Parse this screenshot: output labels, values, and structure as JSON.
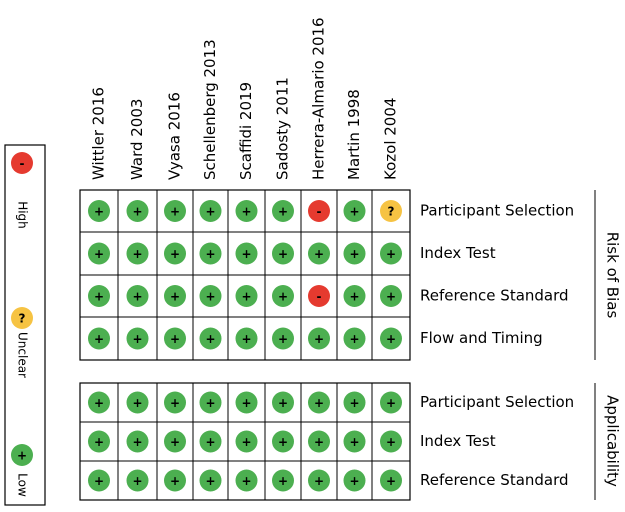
{
  "legend": [
    {
      "symbol": "-",
      "label": "High",
      "color": "#e53a2f"
    },
    {
      "symbol": "?",
      "label": "Unclear",
      "color": "#f6c343"
    },
    {
      "symbol": "+",
      "label": "Low",
      "color": "#4caf50"
    }
  ],
  "studies": [
    "Wittler 2016",
    "Ward 2003",
    "Vyasa 2016",
    "Schellenberg 2013",
    "Scaffidi 2019",
    "Sadosty 2011",
    "Herrera-Almario 2016",
    "Martin 1998",
    "Kozol 2004"
  ],
  "risk_of_bias": {
    "title": "Risk of Bias",
    "domains": [
      "Participant Selection",
      "Index Test",
      "Reference Standard",
      "Flow and Timing"
    ],
    "judgments": [
      [
        "+",
        "+",
        "+",
        "+",
        "+",
        "+",
        "-",
        "+",
        "?"
      ],
      [
        "+",
        "+",
        "+",
        "+",
        "+",
        "+",
        "+",
        "+",
        "+"
      ],
      [
        "+",
        "+",
        "+",
        "+",
        "+",
        "+",
        "-",
        "+",
        "+"
      ],
      [
        "+",
        "+",
        "+",
        "+",
        "+",
        "+",
        "+",
        "+",
        "+"
      ]
    ]
  },
  "applicability": {
    "title": "Applicability",
    "domains": [
      "Participant Selection",
      "Index Test",
      "Reference Standard"
    ],
    "judgments": [
      [
        "+",
        "+",
        "+",
        "+",
        "+",
        "+",
        "+",
        "+",
        "+"
      ],
      [
        "+",
        "+",
        "+",
        "+",
        "+",
        "+",
        "+",
        "+",
        "+"
      ],
      [
        "+",
        "+",
        "+",
        "+",
        "+",
        "+",
        "+",
        "+",
        "+"
      ]
    ]
  }
}
